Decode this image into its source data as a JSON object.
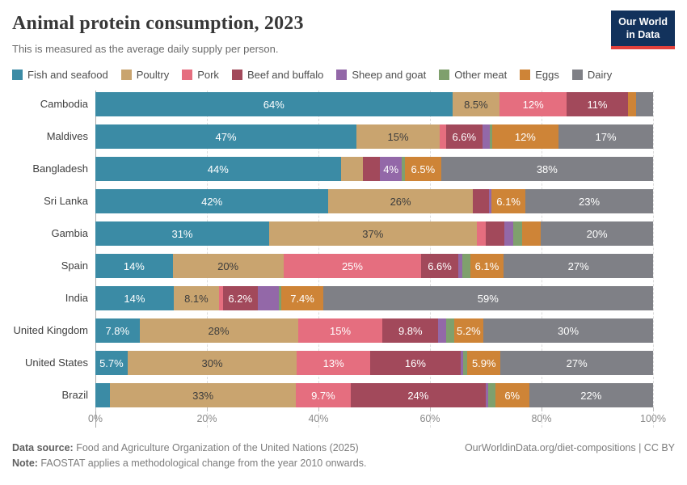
{
  "header": {
    "title": "Animal protein consumption, 2023",
    "subtitle": "This is measured as the average daily supply per person.",
    "logo": {
      "line1": "Our World",
      "line2": "in Data",
      "bg_color": "#12325C",
      "accent_color": "#E2413C"
    }
  },
  "chart_data": {
    "type": "bar",
    "stacked": true,
    "orientation": "horizontal",
    "title": "Animal protein consumption, 2023",
    "unit": "%",
    "xlim": [
      0,
      100
    ],
    "x_ticks": [
      "0%",
      "20%",
      "40%",
      "60%",
      "80%",
      "100%"
    ],
    "grid": "dashed-vertical",
    "legend_position": "top",
    "categories": [
      "Cambodia",
      "Maldives",
      "Bangladesh",
      "Sri Lanka",
      "Gambia",
      "Spain",
      "India",
      "United Kingdom",
      "United States",
      "Brazil"
    ],
    "series": [
      {
        "name": "Fish and seafood",
        "color": "#3B8BA5",
        "label_color": "#ffffff",
        "values": [
          64,
          47,
          44,
          42,
          31,
          14,
          14,
          7.8,
          5.7,
          2.6
        ],
        "labels": [
          "64%",
          "47%",
          "44%",
          "42%",
          "31%",
          "14%",
          "14%",
          "7.8%",
          "5.7%",
          ""
        ]
      },
      {
        "name": "Poultry",
        "color": "#C9A46F",
        "label_color": "#3d3d3d",
        "values": [
          8.5,
          15,
          4,
          26,
          37,
          20,
          8.1,
          28,
          30,
          33
        ],
        "labels": [
          "8.5%",
          "15%",
          "",
          "26%",
          "37%",
          "20%",
          "8.1%",
          "28%",
          "30%",
          "33%"
        ]
      },
      {
        "name": "Pork",
        "color": "#E56E7F",
        "label_color": "#ffffff",
        "values": [
          12,
          1.1,
          0,
          0,
          1.6,
          25,
          0.7,
          15,
          13,
          9.7
        ],
        "labels": [
          "12%",
          "",
          "",
          "",
          "",
          "25%",
          "",
          "15%",
          "13%",
          "9.7%"
        ]
      },
      {
        "name": "Beef and buffalo",
        "color": "#A2495B",
        "label_color": "#ffffff",
        "values": [
          11,
          6.6,
          3,
          2.9,
          3.4,
          6.6,
          6.2,
          9.8,
          16,
          24
        ],
        "labels": [
          "11%",
          "6.6%",
          "",
          "",
          "",
          "6.6%",
          "6.2%",
          "9.8%",
          "16%",
          "24%"
        ]
      },
      {
        "name": "Sheep and goat",
        "color": "#9368A8",
        "label_color": "#ffffff",
        "values": [
          0,
          1.3,
          4,
          0.5,
          1.6,
          0.8,
          3.8,
          1.4,
          0.5,
          0.5
        ],
        "labels": [
          "",
          "",
          "4%",
          "",
          "",
          "",
          "",
          "",
          "",
          ""
        ]
      },
      {
        "name": "Other meat",
        "color": "#7FA06D",
        "label_color": "#ffffff",
        "values": [
          0,
          0.4,
          0.5,
          0,
          1.6,
          1.4,
          0.5,
          1.4,
          0.7,
          1.2
        ],
        "labels": [
          "",
          "",
          "",
          "",
          "",
          "",
          "",
          "",
          "",
          ""
        ]
      },
      {
        "name": "Eggs",
        "color": "#CE8437",
        "label_color": "#ffffff",
        "values": [
          1.5,
          12,
          6.5,
          6.1,
          3.3,
          6.1,
          7.4,
          5.2,
          5.9,
          6
        ],
        "labels": [
          "",
          "12%",
          "6.5%",
          "6.1%",
          "",
          "6.1%",
          "7.4%",
          "5.2%",
          "5.9%",
          "6%"
        ]
      },
      {
        "name": "Dairy",
        "color": "#7F8086",
        "label_color": "#ffffff",
        "values": [
          3,
          17,
          38,
          23,
          20,
          27,
          59,
          30,
          27,
          22
        ],
        "labels": [
          "",
          "17%",
          "38%",
          "23%",
          "20%",
          "27%",
          "59%",
          "30%",
          "27%",
          "22%"
        ]
      }
    ]
  },
  "footer": {
    "source_label": "Data source:",
    "source_text": " Food and Agriculture Organization of the United Nations (2025)",
    "note_label": "Note:",
    "note_text": " FAOSTAT applies a methodological change from the year 2010 onwards.",
    "link": "OurWorldinData.org/diet-compositions | CC BY"
  }
}
